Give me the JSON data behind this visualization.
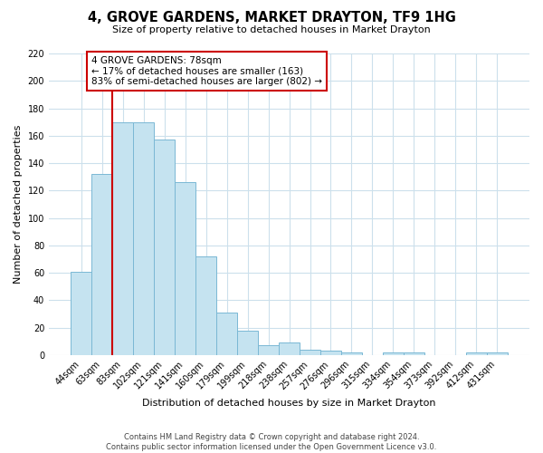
{
  "title": "4, GROVE GARDENS, MARKET DRAYTON, TF9 1HG",
  "subtitle": "Size of property relative to detached houses in Market Drayton",
  "xlabel": "Distribution of detached houses by size in Market Drayton",
  "ylabel": "Number of detached properties",
  "bar_labels": [
    "44sqm",
    "63sqm",
    "83sqm",
    "102sqm",
    "121sqm",
    "141sqm",
    "160sqm",
    "179sqm",
    "199sqm",
    "218sqm",
    "238sqm",
    "257sqm",
    "276sqm",
    "296sqm",
    "315sqm",
    "334sqm",
    "354sqm",
    "373sqm",
    "392sqm",
    "412sqm",
    "431sqm"
  ],
  "bar_values": [
    61,
    132,
    170,
    170,
    157,
    126,
    72,
    31,
    18,
    7,
    9,
    4,
    3,
    2,
    0,
    2,
    2,
    0,
    0,
    2,
    2
  ],
  "bar_color": "#c5e3f0",
  "bar_edge_color": "#7ab8d4",
  "vline_x_idx": 2,
  "vline_color": "#cc0000",
  "annotation_title": "4 GROVE GARDENS: 78sqm",
  "annotation_line1": "← 17% of detached houses are smaller (163)",
  "annotation_line2": "83% of semi-detached houses are larger (802) →",
  "annotation_box_facecolor": "#ffffff",
  "annotation_box_edgecolor": "#cc0000",
  "ylim": [
    0,
    220
  ],
  "yticks": [
    0,
    20,
    40,
    60,
    80,
    100,
    120,
    140,
    160,
    180,
    200,
    220
  ],
  "footer1": "Contains HM Land Registry data © Crown copyright and database right 2024.",
  "footer2": "Contains public sector information licensed under the Open Government Licence v3.0.",
  "background_color": "#ffffff",
  "grid_color": "#cce0ec",
  "title_fontsize": 10.5,
  "subtitle_fontsize": 8.0,
  "axis_label_fontsize": 8.0,
  "tick_fontsize": 7.0,
  "footer_fontsize": 6.0
}
